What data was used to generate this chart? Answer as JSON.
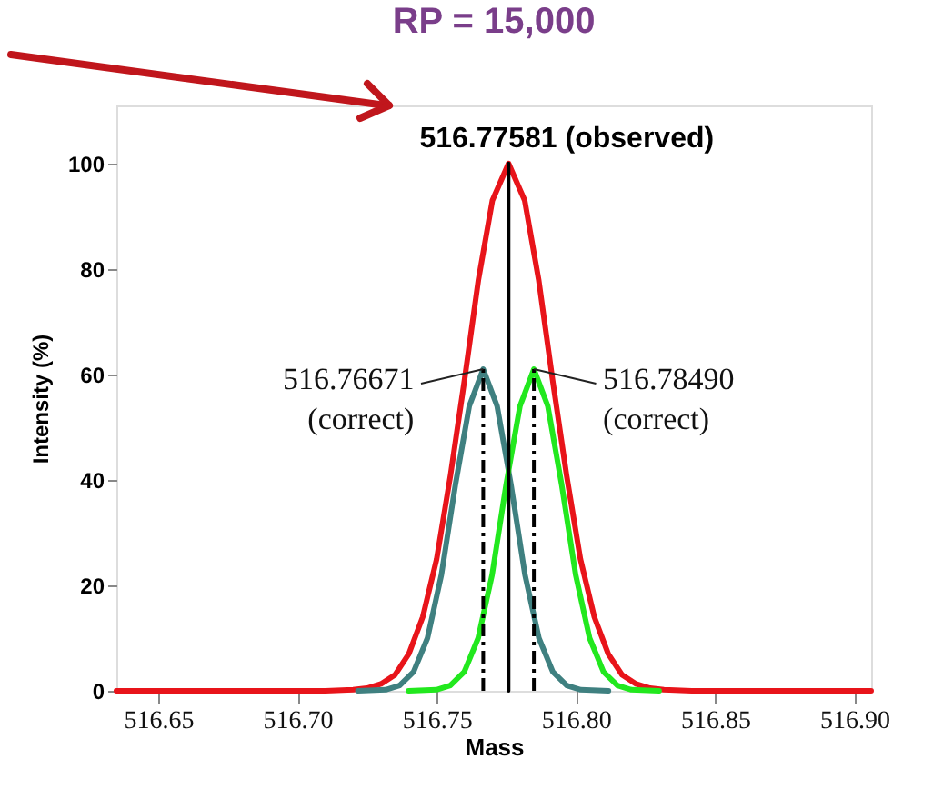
{
  "chart_data": {
    "type": "line",
    "title": "RP = 15,000",
    "xlabel": "Mass",
    "ylabel": "Intensity (%)",
    "xlim": [
      516.635,
      516.906
    ],
    "xticks": [
      516.65,
      {
        "value": 516.7,
        "label": "516.70"
      },
      516.75,
      {
        "value": 516.8,
        "label": "516.80"
      },
      516.85,
      {
        "value": 516.9,
        "label": "516.90"
      }
    ],
    "ylim": [
      0,
      111
    ],
    "yticks": [
      0,
      20,
      40,
      60,
      80,
      100
    ],
    "grid": false,
    "marker": "none",
    "series": [
      {
        "color": "#e8141a",
        "x": [
          516.635,
          516.7,
          516.71,
          516.72,
          516.725,
          516.73,
          516.735,
          516.74,
          516.745,
          516.75,
          516.755,
          516.76,
          516.765,
          516.77,
          516.7758,
          516.7816,
          516.7866,
          516.7916,
          516.7966,
          516.8016,
          516.8066,
          516.8116,
          516.8166,
          516.8216,
          516.8266,
          516.8316,
          516.8416,
          516.906
        ],
        "values": [
          0,
          0,
          0,
          0.2,
          0.5,
          1.3,
          3,
          7,
          14,
          25,
          41,
          59,
          78,
          93,
          100,
          93,
          78,
          59,
          41,
          25,
          14,
          7,
          3,
          1.3,
          0.5,
          0.2,
          0,
          0
        ]
      },
      {
        "color": "#3f8080",
        "x": [
          516.7217,
          516.7317,
          516.7367,
          516.7417,
          516.7467,
          516.7517,
          516.7567,
          516.7617,
          516.7667,
          516.7717,
          516.7767,
          516.7817,
          516.7867,
          516.7917,
          516.7967,
          516.8017,
          516.8117
        ],
        "values": [
          0,
          0.2,
          1,
          3.6,
          10,
          22,
          39,
          54,
          61,
          54,
          39,
          22,
          10,
          3.6,
          1,
          0.2,
          0
        ]
      },
      {
        "color": "#22e81e",
        "x": [
          516.7399,
          516.7499,
          516.7549,
          516.7599,
          516.7649,
          516.7699,
          516.7749,
          516.7799,
          516.7849,
          516.7899,
          516.7949,
          516.7999,
          516.8049,
          516.8099,
          516.8149,
          516.8199,
          516.8299
        ],
        "values": [
          0,
          0.2,
          1,
          3.6,
          10,
          22,
          39,
          54,
          61,
          54,
          39,
          22,
          10,
          3.6,
          1,
          0.2,
          0
        ]
      },
      {
        "color": "#000000",
        "line_style": "solid",
        "x": [
          516.77581,
          516.77581
        ],
        "values": [
          0,
          100
        ]
      },
      {
        "color": "#000000",
        "line_style": "dashed",
        "x": [
          516.76671,
          516.76671
        ],
        "values": [
          0,
          61
        ]
      },
      {
        "color": "#000000",
        "line_style": "dashed",
        "x": [
          516.7849,
          516.7849
        ],
        "values": [
          0,
          61
        ]
      }
    ],
    "annotations": [
      {
        "text": "516.77581  (observed)",
        "x": 516.77581,
        "y": 100
      },
      {
        "text": "516.76671\n(correct)",
        "x": 516.76671,
        "y": 61
      },
      {
        "text": "516.78490\n(correct)",
        "x": 516.7849,
        "y": 61
      }
    ]
  }
}
